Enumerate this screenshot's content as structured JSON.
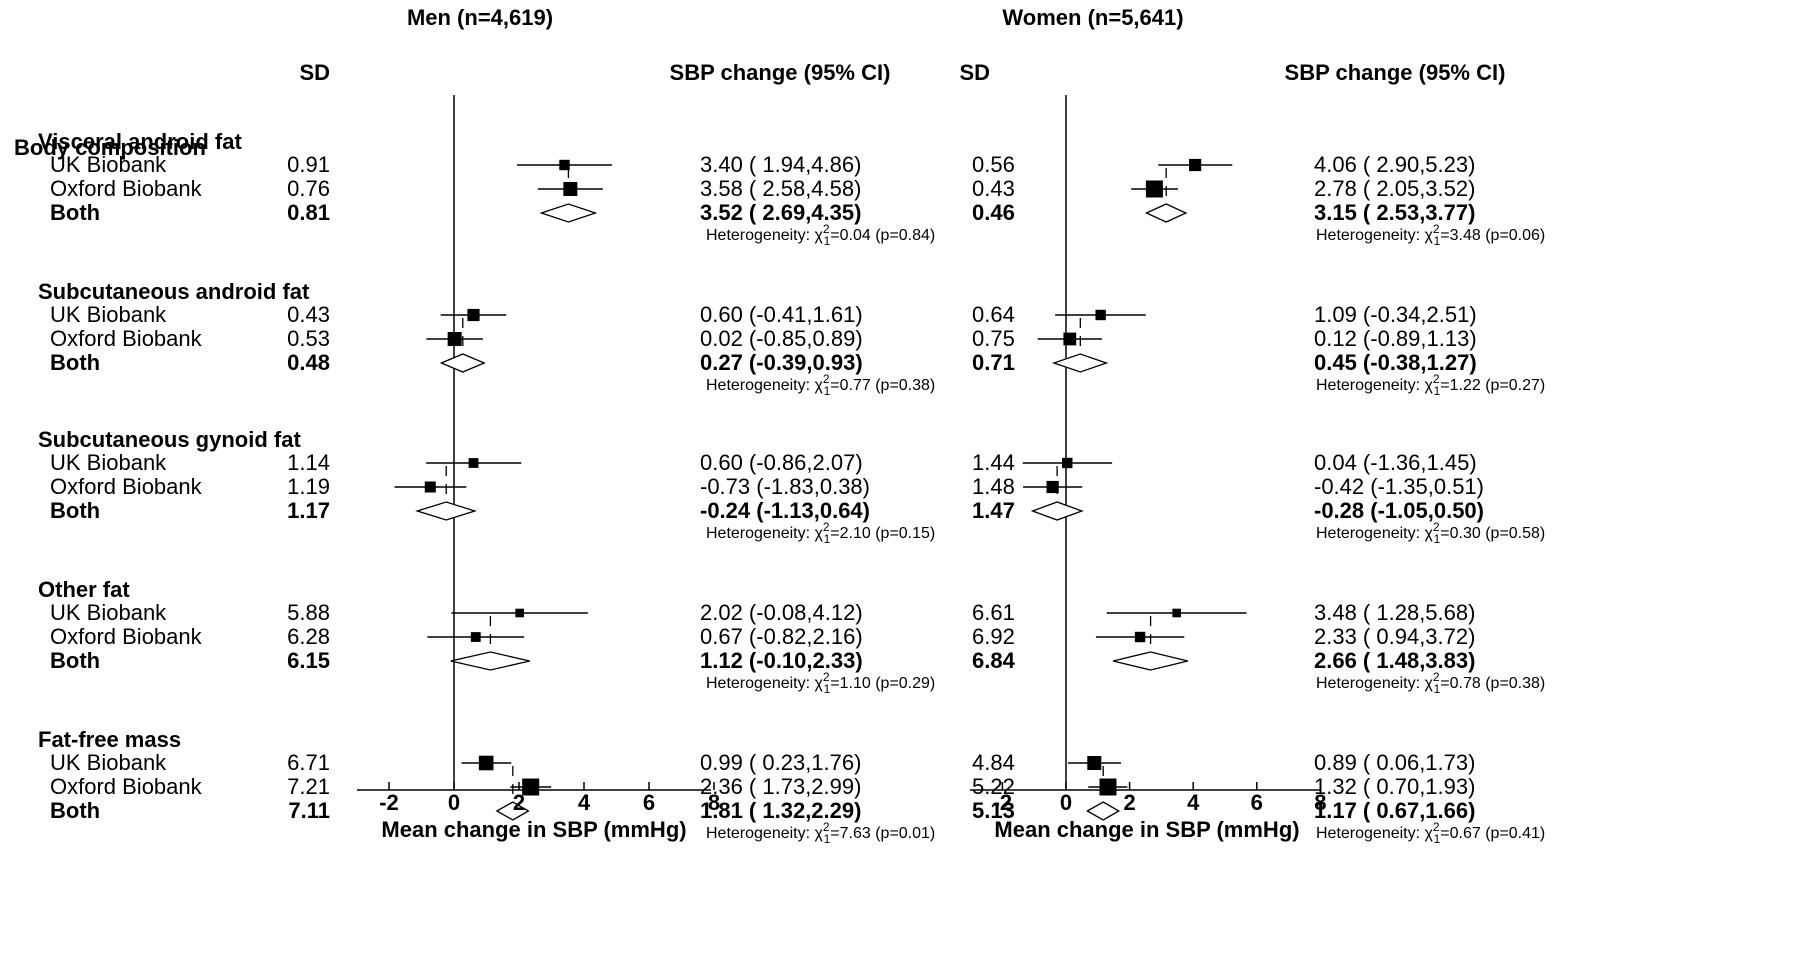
{
  "chart_data": [
    {
      "type": "forest",
      "title": "Men (n=4,619)",
      "sd_header": "SD",
      "ci_header": "SBP change (95% CI)",
      "xlabel": "Mean change in SBP (mmHg)",
      "xlim": [
        -3.3,
        8
      ],
      "xticks": [
        -2,
        0,
        2,
        4,
        6,
        8
      ],
      "sections": [
        {
          "name": "Visceral android fat",
          "rows": [
            {
              "label": "UK Biobank",
              "sd": "0.91",
              "est": 3.4,
              "lo": 1.94,
              "hi": 4.86,
              "ci_text": "3.40 ( 1.94,4.86)",
              "kind": "square",
              "weight": 0.45
            },
            {
              "label": "Oxford Biobank",
              "sd": "0.76",
              "est": 3.58,
              "lo": 2.58,
              "hi": 4.58,
              "ci_text": "3.58 ( 2.58,4.58)",
              "kind": "square",
              "weight": 0.75
            },
            {
              "label": "Both",
              "sd": "0.81",
              "est": 3.52,
              "lo": 2.69,
              "hi": 4.35,
              "ci_text": "3.52 ( 2.69,4.35)",
              "kind": "diamond"
            }
          ],
          "het_prefix": "Heterogeneity: χ",
          "het_sub": "1",
          "het_sup": "2",
          "het_stat": "=0.04 (p=0.84)"
        },
        {
          "name": "Subcutaneous android fat",
          "rows": [
            {
              "label": "UK Biobank",
              "sd": "0.43",
              "est": 0.6,
              "lo": -0.41,
              "hi": 1.61,
              "ci_text": "0.60 (-0.41,1.61)",
              "kind": "square",
              "weight": 0.6
            },
            {
              "label": "Oxford Biobank",
              "sd": "0.53",
              "est": 0.02,
              "lo": -0.85,
              "hi": 0.89,
              "ci_text": "0.02 (-0.85,0.89)",
              "kind": "square",
              "weight": 0.75
            },
            {
              "label": "Both",
              "sd": "0.48",
              "est": 0.27,
              "lo": -0.39,
              "hi": 0.93,
              "ci_text": "0.27 (-0.39,0.93)",
              "kind": "diamond"
            }
          ],
          "het_prefix": "Heterogeneity: χ",
          "het_sub": "1",
          "het_sup": "2",
          "het_stat": "=0.77 (p=0.38)"
        },
        {
          "name": "Subcutaneous gynoid fat",
          "rows": [
            {
              "label": "UK Biobank",
              "sd": "1.14",
              "est": 0.6,
              "lo": -0.86,
              "hi": 2.07,
              "ci_text": "0.60 (-0.86,2.07)",
              "kind": "square",
              "weight": 0.4
            },
            {
              "label": "Oxford Biobank",
              "sd": "1.19",
              "est": -0.73,
              "lo": -1.83,
              "hi": 0.38,
              "ci_text": "-0.73 (-1.83,0.38)",
              "kind": "square",
              "weight": 0.5
            },
            {
              "label": "Both",
              "sd": "1.17",
              "est": -0.24,
              "lo": -1.13,
              "hi": 0.64,
              "ci_text": "-0.24 (-1.13,0.64)",
              "kind": "diamond"
            }
          ],
          "het_prefix": "Heterogeneity: χ",
          "het_sub": "1",
          "het_sup": "2",
          "het_stat": "=2.10 (p=0.15)"
        },
        {
          "name": "Other fat",
          "rows": [
            {
              "label": "UK Biobank",
              "sd": "5.88",
              "est": 2.02,
              "lo": -0.08,
              "hi": 4.12,
              "ci_text": "2.02 (-0.08,4.12)",
              "kind": "square",
              "weight": 0.3
            },
            {
              "label": "Oxford Biobank",
              "sd": "6.28",
              "est": 0.67,
              "lo": -0.82,
              "hi": 2.16,
              "ci_text": "0.67 (-0.82,2.16)",
              "kind": "square",
              "weight": 0.4
            },
            {
              "label": "Both",
              "sd": "6.15",
              "est": 1.12,
              "lo": -0.1,
              "hi": 2.33,
              "ci_text": "1.12 (-0.10,2.33)",
              "kind": "diamond"
            }
          ],
          "het_prefix": "Heterogeneity: χ",
          "het_sub": "1",
          "het_sup": "2",
          "het_stat": "=1.10 (p=0.29)"
        },
        {
          "name": "Fat-free mass",
          "rows": [
            {
              "label": "UK Biobank",
              "sd": "6.71",
              "est": 0.99,
              "lo": 0.23,
              "hi": 1.76,
              "ci_text": "0.99 ( 0.23,1.76)",
              "kind": "square",
              "weight": 0.8
            },
            {
              "label": "Oxford Biobank",
              "sd": "7.21",
              "est": 2.36,
              "lo": 1.73,
              "hi": 2.99,
              "ci_text": "2.36 ( 1.73,2.99)",
              "kind": "square",
              "weight": 1.0
            },
            {
              "label": "Both",
              "sd": "7.11",
              "est": 1.81,
              "lo": 1.32,
              "hi": 2.29,
              "ci_text": "1.81 ( 1.32,2.29)",
              "kind": "diamond"
            }
          ],
          "het_prefix": "Heterogeneity: χ",
          "het_sub": "1",
          "het_sup": "2",
          "het_stat": "=7.63 (p=0.01)"
        }
      ]
    },
    {
      "type": "forest",
      "title": "Women (n=5,641)",
      "sd_header": "SD",
      "ci_header": "SBP change (95% CI)",
      "xlabel": "Mean change in SBP (mmHg)",
      "xlim": [
        -3.3,
        8
      ],
      "xticks": [
        -2,
        0,
        2,
        4,
        6,
        8
      ],
      "sections": [
        {
          "name": "Visceral android fat",
          "rows": [
            {
              "label": "UK Biobank",
              "sd": "0.56",
              "est": 4.06,
              "lo": 2.9,
              "hi": 5.23,
              "ci_text": "4.06 ( 2.90,5.23)",
              "kind": "square",
              "weight": 0.6
            },
            {
              "label": "Oxford Biobank",
              "sd": "0.43",
              "est": 2.78,
              "lo": 2.05,
              "hi": 3.52,
              "ci_text": "2.78 ( 2.05,3.52)",
              "kind": "square",
              "weight": 1.0
            },
            {
              "label": "Both",
              "sd": "0.46",
              "est": 3.15,
              "lo": 2.53,
              "hi": 3.77,
              "ci_text": "3.15 ( 2.53,3.77)",
              "kind": "diamond"
            }
          ],
          "het_prefix": "Heterogeneity: χ",
          "het_sub": "1",
          "het_sup": "2",
          "het_stat": "=3.48 (p=0.06)"
        },
        {
          "name": "Subcutaneous android fat",
          "rows": [
            {
              "label": "UK Biobank",
              "sd": "0.64",
              "est": 1.09,
              "lo": -0.34,
              "hi": 2.51,
              "ci_text": "1.09 (-0.34,2.51)",
              "kind": "square",
              "weight": 0.45
            },
            {
              "label": "Oxford Biobank",
              "sd": "0.75",
              "est": 0.12,
              "lo": -0.89,
              "hi": 1.13,
              "ci_text": "0.12 (-0.89,1.13)",
              "kind": "square",
              "weight": 0.65
            },
            {
              "label": "Both",
              "sd": "0.71",
              "est": 0.45,
              "lo": -0.38,
              "hi": 1.27,
              "ci_text": "0.45 (-0.38,1.27)",
              "kind": "diamond"
            }
          ],
          "het_prefix": "Heterogeneity: χ",
          "het_sub": "1",
          "het_sup": "2",
          "het_stat": "=1.22 (p=0.27)"
        },
        {
          "name": "Subcutaneous gynoid fat",
          "rows": [
            {
              "label": "UK Biobank",
              "sd": "1.44",
              "est": 0.04,
              "lo": -1.36,
              "hi": 1.45,
              "ci_text": "0.04 (-1.36,1.45)",
              "kind": "square",
              "weight": 0.45
            },
            {
              "label": "Oxford Biobank",
              "sd": "1.48",
              "est": -0.42,
              "lo": -1.35,
              "hi": 0.51,
              "ci_text": "-0.42 (-1.35,0.51)",
              "kind": "square",
              "weight": 0.6
            },
            {
              "label": "Both",
              "sd": "1.47",
              "est": -0.28,
              "lo": -1.05,
              "hi": 0.5,
              "ci_text": "-0.28 (-1.05,0.50)",
              "kind": "diamond"
            }
          ],
          "het_prefix": "Heterogeneity: χ",
          "het_sub": "1",
          "het_sup": "2",
          "het_stat": "=0.30 (p=0.58)"
        },
        {
          "name": "Other fat",
          "rows": [
            {
              "label": "UK Biobank",
              "sd": "6.61",
              "est": 3.48,
              "lo": 1.28,
              "hi": 5.68,
              "ci_text": "3.48 ( 1.28,5.68)",
              "kind": "square",
              "weight": 0.3
            },
            {
              "label": "Oxford Biobank",
              "sd": "6.92",
              "est": 2.33,
              "lo": 0.94,
              "hi": 3.72,
              "ci_text": "2.33 ( 0.94,3.72)",
              "kind": "square",
              "weight": 0.45
            },
            {
              "label": "Both",
              "sd": "6.84",
              "est": 2.66,
              "lo": 1.48,
              "hi": 3.83,
              "ci_text": "2.66 ( 1.48,3.83)",
              "kind": "diamond"
            }
          ],
          "het_prefix": "Heterogeneity: χ",
          "het_sub": "1",
          "het_sup": "2",
          "het_stat": "=0.78 (p=0.38)"
        },
        {
          "name": "Fat-free mass",
          "rows": [
            {
              "label": "UK Biobank",
              "sd": "4.84",
              "est": 0.89,
              "lo": 0.06,
              "hi": 1.73,
              "ci_text": "0.89 ( 0.06,1.73)",
              "kind": "square",
              "weight": 0.75
            },
            {
              "label": "Oxford Biobank",
              "sd": "5.22",
              "est": 1.32,
              "lo": 0.7,
              "hi": 1.93,
              "ci_text": "1.32 ( 0.70,1.93)",
              "kind": "square",
              "weight": 1.0
            },
            {
              "label": "Both",
              "sd": "5.13",
              "est": 1.17,
              "lo": 0.67,
              "hi": 1.66,
              "ci_text": "1.17 ( 0.67,1.66)",
              "kind": "diamond"
            }
          ],
          "het_prefix": "Heterogeneity: χ",
          "het_sub": "1",
          "het_sup": "2",
          "het_stat": "=0.67 (p=0.41)"
        }
      ]
    }
  ],
  "category_header": "Body composition"
}
